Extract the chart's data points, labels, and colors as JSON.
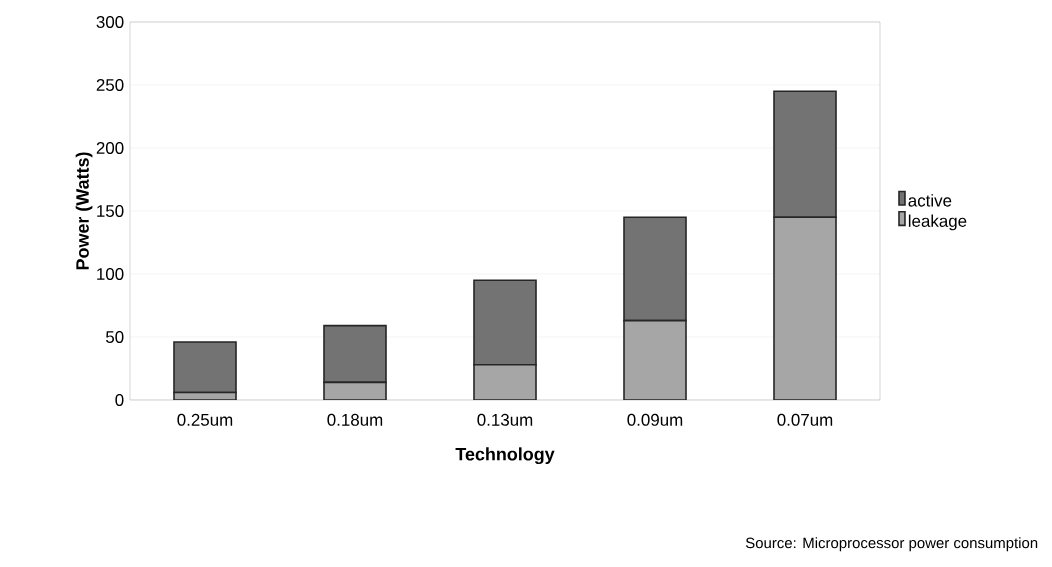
{
  "chart_data": {
    "type": "bar",
    "stacked": true,
    "xlabel": "Technology",
    "ylabel": "Power (Watts)",
    "categories": [
      "0.25um",
      "0.18um",
      "0.13um",
      "0.09um",
      "0.07um"
    ],
    "series": [
      {
        "name": "leakage",
        "color": "#a6a6a6",
        "values": [
          6,
          14,
          28,
          63,
          145
        ]
      },
      {
        "name": "active",
        "color": "#737373",
        "values": [
          40,
          45,
          67,
          82,
          100
        ]
      }
    ],
    "ylim": [
      0,
      300
    ],
    "yticks": [
      0,
      50,
      100,
      150,
      200,
      250,
      300
    ],
    "grid": "y",
    "legend": "right",
    "annotations": [
      "Source: Microprocessor power consumption"
    ]
  }
}
